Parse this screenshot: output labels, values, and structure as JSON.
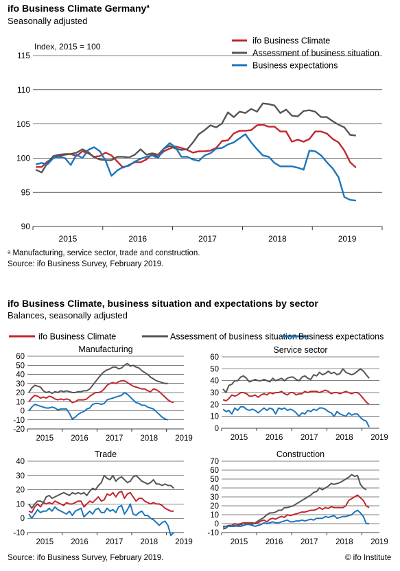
{
  "top": {
    "title": "ifo Business Climate Germany",
    "title_sup": "a",
    "subtitle": "Seasonally adjusted",
    "footnote": "ᵃ Manufacturing, service sector, trade and construction.",
    "source": "Source: ifo Business Survey, February 2019."
  },
  "bottom": {
    "title": "ifo Business Climate, business situation and expectations by sector",
    "subtitle": "Balances, seasonally adjusted",
    "source": "Source: ifo Business Survey, February 2019.",
    "copyright": "© ifo Institute"
  },
  "colors": {
    "climate": "#c1272d",
    "situation": "#555555",
    "expectations": "#1a75bc"
  },
  "chart_data": [
    {
      "type": "line",
      "title": "ifo Business Climate Germany",
      "ylabel": "Index, 2015 = 100",
      "ylim": [
        90,
        115
      ],
      "yticks": [
        90,
        95,
        100,
        105,
        110,
        115
      ],
      "xticks": [
        "2015",
        "2016",
        "2017",
        "2018",
        "2019"
      ],
      "x_start": "2015-01",
      "grid": true,
      "legend": "top-right",
      "series": [
        {
          "name": "ifo Business Climate",
          "color": "#c1272d",
          "values": [
            98.7,
            98.7,
            99.5,
            100.0,
            100.3,
            100.5,
            100.6,
            100.3,
            101.0,
            100.7,
            100.2,
            100.3,
            100.8,
            100.4,
            99.5,
            98.6,
            99.0,
            99.4,
            99.4,
            99.8,
            100.6,
            100.2,
            101.0,
            101.4,
            101.7,
            101.5,
            101.2,
            100.8,
            101.0,
            101.0,
            101.1,
            101.5,
            102.5,
            102.6,
            103.6,
            104.0,
            104.0,
            104.1,
            104.8,
            104.9,
            104.6,
            104.6,
            103.9,
            103.9,
            102.4,
            102.7,
            102.4,
            102.8,
            103.9,
            103.9,
            103.6,
            102.8,
            102.3,
            101.1,
            99.4,
            98.6
          ]
        },
        {
          "name": "Assessment of business situation",
          "color": "#555555",
          "values": [
            98.3,
            97.9,
            99.3,
            100.3,
            100.5,
            100.6,
            100.6,
            100.8,
            101.3,
            100.9,
            100.1,
            99.8,
            99.7,
            99.7,
            100.2,
            100.2,
            100.1,
            100.5,
            101.3,
            100.5,
            100.7,
            100.5,
            101.4,
            101.8,
            101.4,
            101.2,
            101.3,
            102.3,
            103.5,
            104.1,
            104.8,
            104.5,
            105.1,
            106.7,
            106.0,
            106.8,
            106.6,
            107.2,
            106.8,
            108.0,
            107.9,
            107.7,
            106.6,
            107.1,
            106.2,
            106.1,
            106.9,
            107.0,
            106.8,
            106.0,
            106.0,
            105.4,
            104.9,
            104.5,
            103.4,
            103.3
          ]
        },
        {
          "name": "Business expectations",
          "color": "#1a75bc",
          "values": [
            99.1,
            99.3,
            99.1,
            100.0,
            100.2,
            100.0,
            99.0,
            100.5,
            100.0,
            101.2,
            101.6,
            101.0,
            99.6,
            97.4,
            98.2,
            98.7,
            98.9,
            99.5,
            99.9,
            100.2,
            100.4,
            100.0,
            101.4,
            102.2,
            101.6,
            100.2,
            100.2,
            99.8,
            99.6,
            100.4,
            100.7,
            101.4,
            101.5,
            102.0,
            102.3,
            102.9,
            103.5,
            102.3,
            101.3,
            100.4,
            100.2,
            99.3,
            98.8,
            98.8,
            98.8,
            98.6,
            98.3,
            101.1,
            101.0,
            100.4,
            99.4,
            98.5,
            97.2,
            94.3,
            93.9,
            93.8
          ]
        }
      ]
    },
    {
      "type": "line",
      "title": "Manufacturing",
      "ylim": [
        -20,
        60
      ],
      "yticks": [
        -20,
        -10,
        0,
        10,
        20,
        30,
        40,
        50,
        60
      ],
      "xticks": [
        "2015",
        "2016",
        "2017",
        "2018",
        "2019"
      ],
      "x_start": "2015-01",
      "series": [
        {
          "name": "ifo Business Climate",
          "values": [
            10,
            14,
            17,
            16,
            14,
            15,
            14,
            16,
            15,
            13,
            12,
            13,
            12,
            13,
            12,
            9,
            10,
            12,
            12,
            12,
            13,
            16,
            18,
            20,
            20,
            21,
            24,
            28,
            30,
            31,
            30,
            32,
            33,
            33,
            31,
            29,
            27,
            26,
            25,
            24,
            24,
            22,
            21,
            24,
            23,
            21,
            18,
            15,
            12,
            10,
            9
          ]
        },
        {
          "name": "Assessment of business situation",
          "values": [
            20,
            25,
            28,
            27,
            26,
            22,
            20,
            21,
            19,
            21,
            20,
            22,
            21,
            22,
            21,
            20,
            20,
            21,
            21,
            22,
            22,
            24,
            28,
            32,
            36,
            40,
            43,
            45,
            46,
            48,
            48,
            46,
            47,
            50,
            52,
            49,
            50,
            48,
            47,
            44,
            42,
            40,
            37,
            35,
            33,
            32,
            31,
            30,
            30
          ]
        },
        {
          "name": "Business expectations",
          "values": [
            0,
            4,
            7,
            6,
            5,
            4,
            3,
            3,
            4,
            3,
            1,
            2,
            2,
            2,
            -3,
            -9,
            -7,
            -4,
            -2,
            -1,
            2,
            3,
            7,
            8,
            8,
            7,
            8,
            12,
            13,
            14,
            15,
            16,
            17,
            20,
            18,
            15,
            12,
            9,
            8,
            6,
            6,
            4,
            3,
            2,
            -1,
            -4,
            -7,
            -9,
            -10
          ]
        }
      ]
    },
    {
      "type": "line",
      "title": "Service sector",
      "ylim": [
        0,
        60
      ],
      "yticks": [
        0,
        10,
        20,
        30,
        40,
        50,
        60
      ],
      "xticks": [
        "2015",
        "2016",
        "2017",
        "2018",
        "2019"
      ],
      "x_start": "2015-01",
      "series": [
        {
          "name": "ifo Business Climate",
          "values": [
            24,
            23,
            25,
            28,
            27,
            28,
            30,
            30,
            29,
            27,
            27,
            28,
            26,
            28,
            29,
            28,
            30,
            29,
            30,
            30,
            31,
            29,
            28,
            30,
            30,
            28,
            29,
            29,
            31,
            30,
            31,
            31,
            31,
            30,
            31,
            32,
            31,
            29,
            30,
            30,
            29,
            30,
            31,
            30,
            29,
            30,
            30,
            28,
            25,
            22,
            20
          ]
        },
        {
          "name": "Assessment of business situation",
          "values": [
            33,
            30,
            36,
            37,
            40,
            40,
            43,
            44,
            42,
            39,
            40,
            41,
            40,
            40,
            41,
            40,
            39,
            42,
            40,
            41,
            42,
            40,
            42,
            43,
            43,
            41,
            40,
            43,
            44,
            42,
            41,
            45,
            44,
            47,
            45,
            46,
            48,
            46,
            47,
            45,
            46,
            50,
            47,
            46,
            45,
            46,
            48,
            50,
            48,
            45,
            42
          ]
        },
        {
          "name": "Business expectations",
          "values": [
            16,
            14,
            15,
            12,
            17,
            15,
            18,
            18,
            16,
            15,
            16,
            15,
            13,
            15,
            17,
            15,
            17,
            16,
            12,
            17,
            16,
            17,
            15,
            16,
            15,
            13,
            10,
            13,
            12,
            15,
            14,
            16,
            15,
            17,
            17,
            16,
            14,
            13,
            10,
            14,
            12,
            11,
            10,
            13,
            11,
            12,
            12,
            9,
            7,
            6,
            1
          ]
        }
      ]
    },
    {
      "type": "line",
      "title": "Trade",
      "ylim": [
        -10,
        40
      ],
      "yticks": [
        -10,
        0,
        10,
        20,
        30,
        40
      ],
      "xticks": [
        "2015",
        "2016",
        "2017",
        "2018",
        "2019"
      ],
      "x_start": "2015-01",
      "series": [
        {
          "name": "ifo Business Climate",
          "values": [
            5,
            4,
            8,
            10,
            8,
            11,
            10,
            11,
            10,
            12,
            11,
            10,
            9,
            11,
            10,
            10,
            11,
            12,
            12,
            8,
            10,
            12,
            11,
            13,
            15,
            12,
            13,
            17,
            16,
            18,
            15,
            18,
            19,
            14,
            17,
            18,
            15,
            12,
            14,
            14,
            12,
            11,
            10,
            11,
            10,
            10,
            9,
            7,
            6,
            5,
            5
          ]
        },
        {
          "name": "Assessment of business situation",
          "values": [
            10,
            7,
            10,
            12,
            12,
            11,
            15,
            16,
            14,
            15,
            16,
            17,
            18,
            17,
            16,
            18,
            17,
            18,
            17,
            18,
            16,
            19,
            21,
            20,
            23,
            25,
            30,
            28,
            27,
            30,
            26,
            28,
            29,
            27,
            25,
            26,
            29,
            30,
            28,
            26,
            25,
            24,
            25,
            27,
            24,
            24,
            23,
            24,
            23,
            23,
            21
          ]
        },
        {
          "name": "Business expectations",
          "values": [
            3,
            0,
            3,
            6,
            4,
            5,
            5,
            7,
            5,
            8,
            6,
            5,
            4,
            3,
            5,
            2,
            5,
            6,
            7,
            1,
            3,
            5,
            3,
            6,
            7,
            4,
            4,
            7,
            5,
            6,
            4,
            8,
            9,
            3,
            6,
            10,
            3,
            2,
            4,
            5,
            2,
            2,
            0,
            -1,
            -3,
            -5,
            -3,
            -2,
            -5,
            -12,
            -10
          ]
        }
      ]
    },
    {
      "type": "line",
      "title": "Construction",
      "ylim": [
        -10,
        70
      ],
      "yticks": [
        -10,
        0,
        10,
        20,
        30,
        40,
        50,
        60,
        70
      ],
      "xticks": [
        "2015",
        "2016",
        "2017",
        "2018",
        "2019"
      ],
      "x_start": "2015-01",
      "series": [
        {
          "name": "ifo Business Climate",
          "values": [
            -4,
            -3,
            -2,
            -2,
            0,
            -1,
            0,
            1,
            1,
            1,
            1,
            0,
            1,
            3,
            4,
            2,
            5,
            6,
            5,
            7,
            8,
            7,
            10,
            9,
            10,
            11,
            12,
            13,
            13,
            14,
            15,
            15,
            16,
            18,
            16,
            18,
            17,
            19,
            18,
            18,
            18,
            18,
            20,
            26,
            28,
            30,
            32,
            29,
            26,
            20,
            18
          ]
        },
        {
          "name": "Assessment of business situation",
          "values": [
            -6,
            -5,
            -2,
            -3,
            -3,
            -2,
            -1,
            -2,
            0,
            0,
            -1,
            1,
            3,
            5,
            7,
            10,
            12,
            12,
            13,
            15,
            15,
            18,
            18,
            19,
            20,
            22,
            24,
            26,
            28,
            30,
            32,
            35,
            36,
            40,
            38,
            40,
            42,
            45,
            44,
            45,
            46,
            48,
            50,
            52,
            55,
            53,
            54,
            44,
            40,
            38
          ]
        },
        {
          "name": "Business expectations",
          "values": [
            -3,
            -3,
            -3,
            -3,
            -2,
            -3,
            -3,
            -2,
            -1,
            -1,
            -2,
            -3,
            -2,
            -1,
            1,
            0,
            1,
            2,
            1,
            1,
            2,
            3,
            4,
            2,
            2,
            3,
            3,
            4,
            3,
            4,
            5,
            4,
            6,
            6,
            6,
            8,
            7,
            8,
            9,
            6,
            7,
            8,
            8,
            9,
            10,
            13,
            15,
            12,
            8,
            0,
            0
          ]
        }
      ]
    }
  ],
  "sector_legend": [
    "ifo Business Climate",
    "Assessment of business situation",
    "Business expectations"
  ]
}
